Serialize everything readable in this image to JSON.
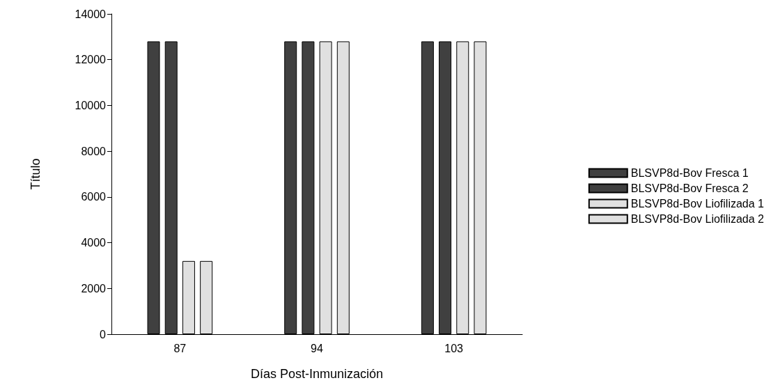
{
  "chart_data": {
    "type": "bar",
    "xlabel": "Días Post-Inmunización",
    "ylabel": "Título",
    "categories": [
      "87",
      "94",
      "103"
    ],
    "series": [
      {
        "name": "BLSVP8d-Bov Fresca 1",
        "color": "#404040",
        "values": [
          12800,
          12800,
          12800
        ]
      },
      {
        "name": "BLSVP8d-Bov Fresca 2",
        "color": "#404040",
        "values": [
          12800,
          12800,
          12800
        ]
      },
      {
        "name": "BLSVP8d-Bov Liofilizada 1",
        "color": "#e0e0e0",
        "values": [
          3200,
          12800,
          12800
        ]
      },
      {
        "name": "BLSVP8d-Bov Liofilizada 2",
        "color": "#e0e0e0",
        "values": [
          3200,
          12800,
          12800
        ]
      }
    ],
    "ylim": [
      0,
      14000
    ],
    "yticks": [
      0,
      2000,
      4000,
      6000,
      8000,
      10000,
      12000,
      14000
    ],
    "grid": false,
    "legend": "right"
  }
}
